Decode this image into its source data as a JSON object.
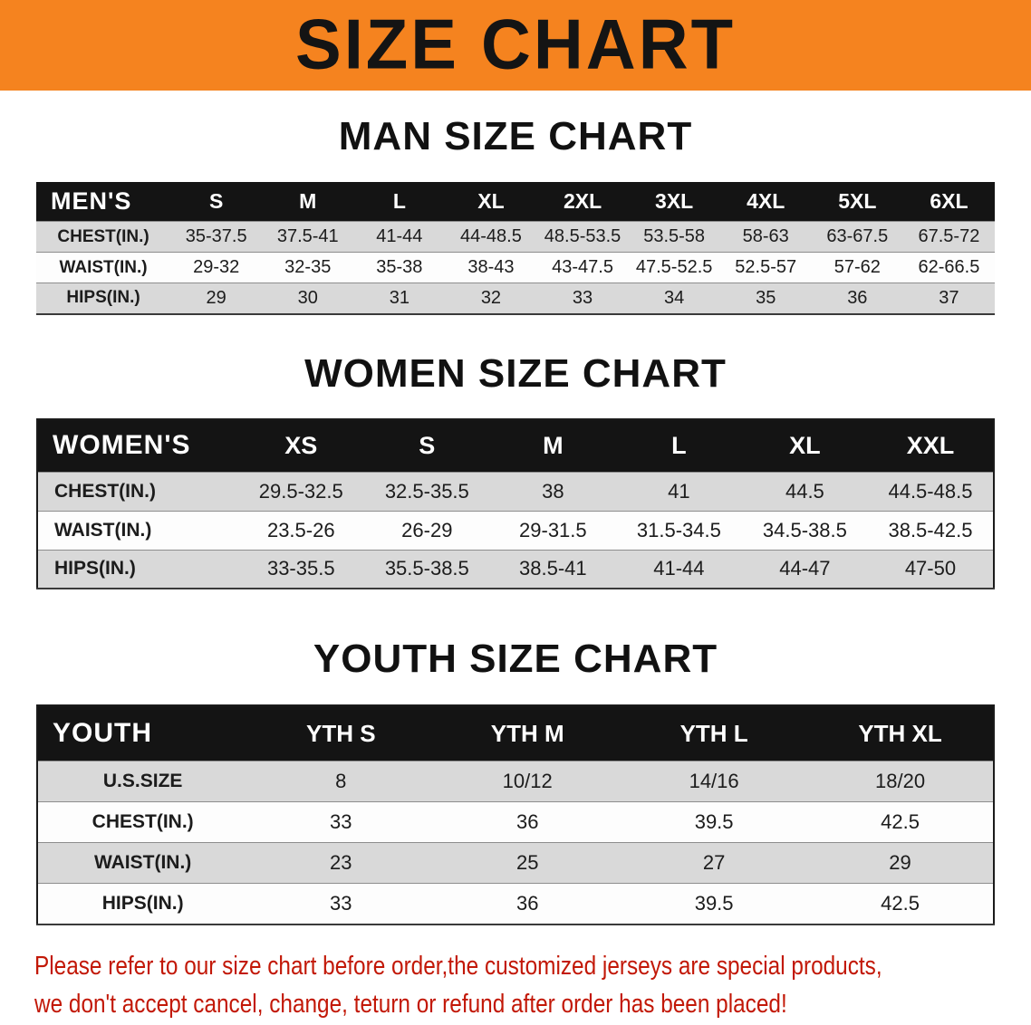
{
  "banner": {
    "title": "SIZE CHART"
  },
  "sections": [
    {
      "id": "men",
      "heading": "MAN SIZE CHART",
      "table": {
        "header": [
          "MEN'S",
          "S",
          "M",
          "L",
          "XL",
          "2XL",
          "3XL",
          "4XL",
          "5XL",
          "6XL"
        ],
        "rows": [
          {
            "label": "CHEST(IN.)",
            "values": [
              "35-37.5",
              "37.5-41",
              "41-44",
              "44-48.5",
              "48.5-53.5",
              "53.5-58",
              "58-63",
              "63-67.5",
              "67.5-72"
            ]
          },
          {
            "label": "WAIST(IN.)",
            "values": [
              "29-32",
              "32-35",
              "35-38",
              "38-43",
              "43-47.5",
              "47.5-52.5",
              "52.5-57",
              "57-62",
              "62-66.5"
            ]
          },
          {
            "label": "HIPS(IN.)",
            "values": [
              "29",
              "30",
              "31",
              "32",
              "33",
              "34",
              "35",
              "36",
              "37"
            ]
          }
        ]
      }
    },
    {
      "id": "women",
      "heading": "WOMEN SIZE CHART",
      "table": {
        "header": [
          "WOMEN'S",
          "XS",
          "S",
          "M",
          "L",
          "XL",
          "XXL"
        ],
        "rows": [
          {
            "label": "CHEST(IN.)",
            "values": [
              "29.5-32.5",
              "32.5-35.5",
              "38",
              "41",
              "44.5",
              "44.5-48.5"
            ]
          },
          {
            "label": "WAIST(IN.)",
            "values": [
              "23.5-26",
              "26-29",
              "29-31.5",
              "31.5-34.5",
              "34.5-38.5",
              "38.5-42.5"
            ]
          },
          {
            "label": "HIPS(IN.)",
            "values": [
              "33-35.5",
              "35.5-38.5",
              "38.5-41",
              "41-44",
              "44-47",
              "47-50"
            ]
          }
        ]
      }
    },
    {
      "id": "youth",
      "heading": "YOUTH SIZE CHART",
      "table": {
        "header": [
          "YOUTH",
          "YTH S",
          "YTH M",
          "YTH L",
          "YTH XL"
        ],
        "rows": [
          {
            "label": "U.S.SIZE",
            "values": [
              "8",
              "10/12",
              "14/16",
              "18/20"
            ]
          },
          {
            "label": "CHEST(IN.)",
            "values": [
              "33",
              "36",
              "39.5",
              "42.5"
            ]
          },
          {
            "label": "WAIST(IN.)",
            "values": [
              "23",
              "25",
              "27",
              "29"
            ]
          },
          {
            "label": "HIPS(IN.)",
            "values": [
              "33",
              "36",
              "39.5",
              "42.5"
            ]
          }
        ]
      }
    }
  ],
  "footer": {
    "line1": "Please refer to our size chart before order,the customized jerseys are special products,",
    "line2": "we don't accept cancel, change, teturn or refund after order has been placed!"
  },
  "colors": {
    "banner_bg": "#f5831f",
    "table_header_bg": "#141414",
    "table_header_text": "#ffffff",
    "row_stripe": "#d9d9d9",
    "notice_text": "#c21807"
  }
}
